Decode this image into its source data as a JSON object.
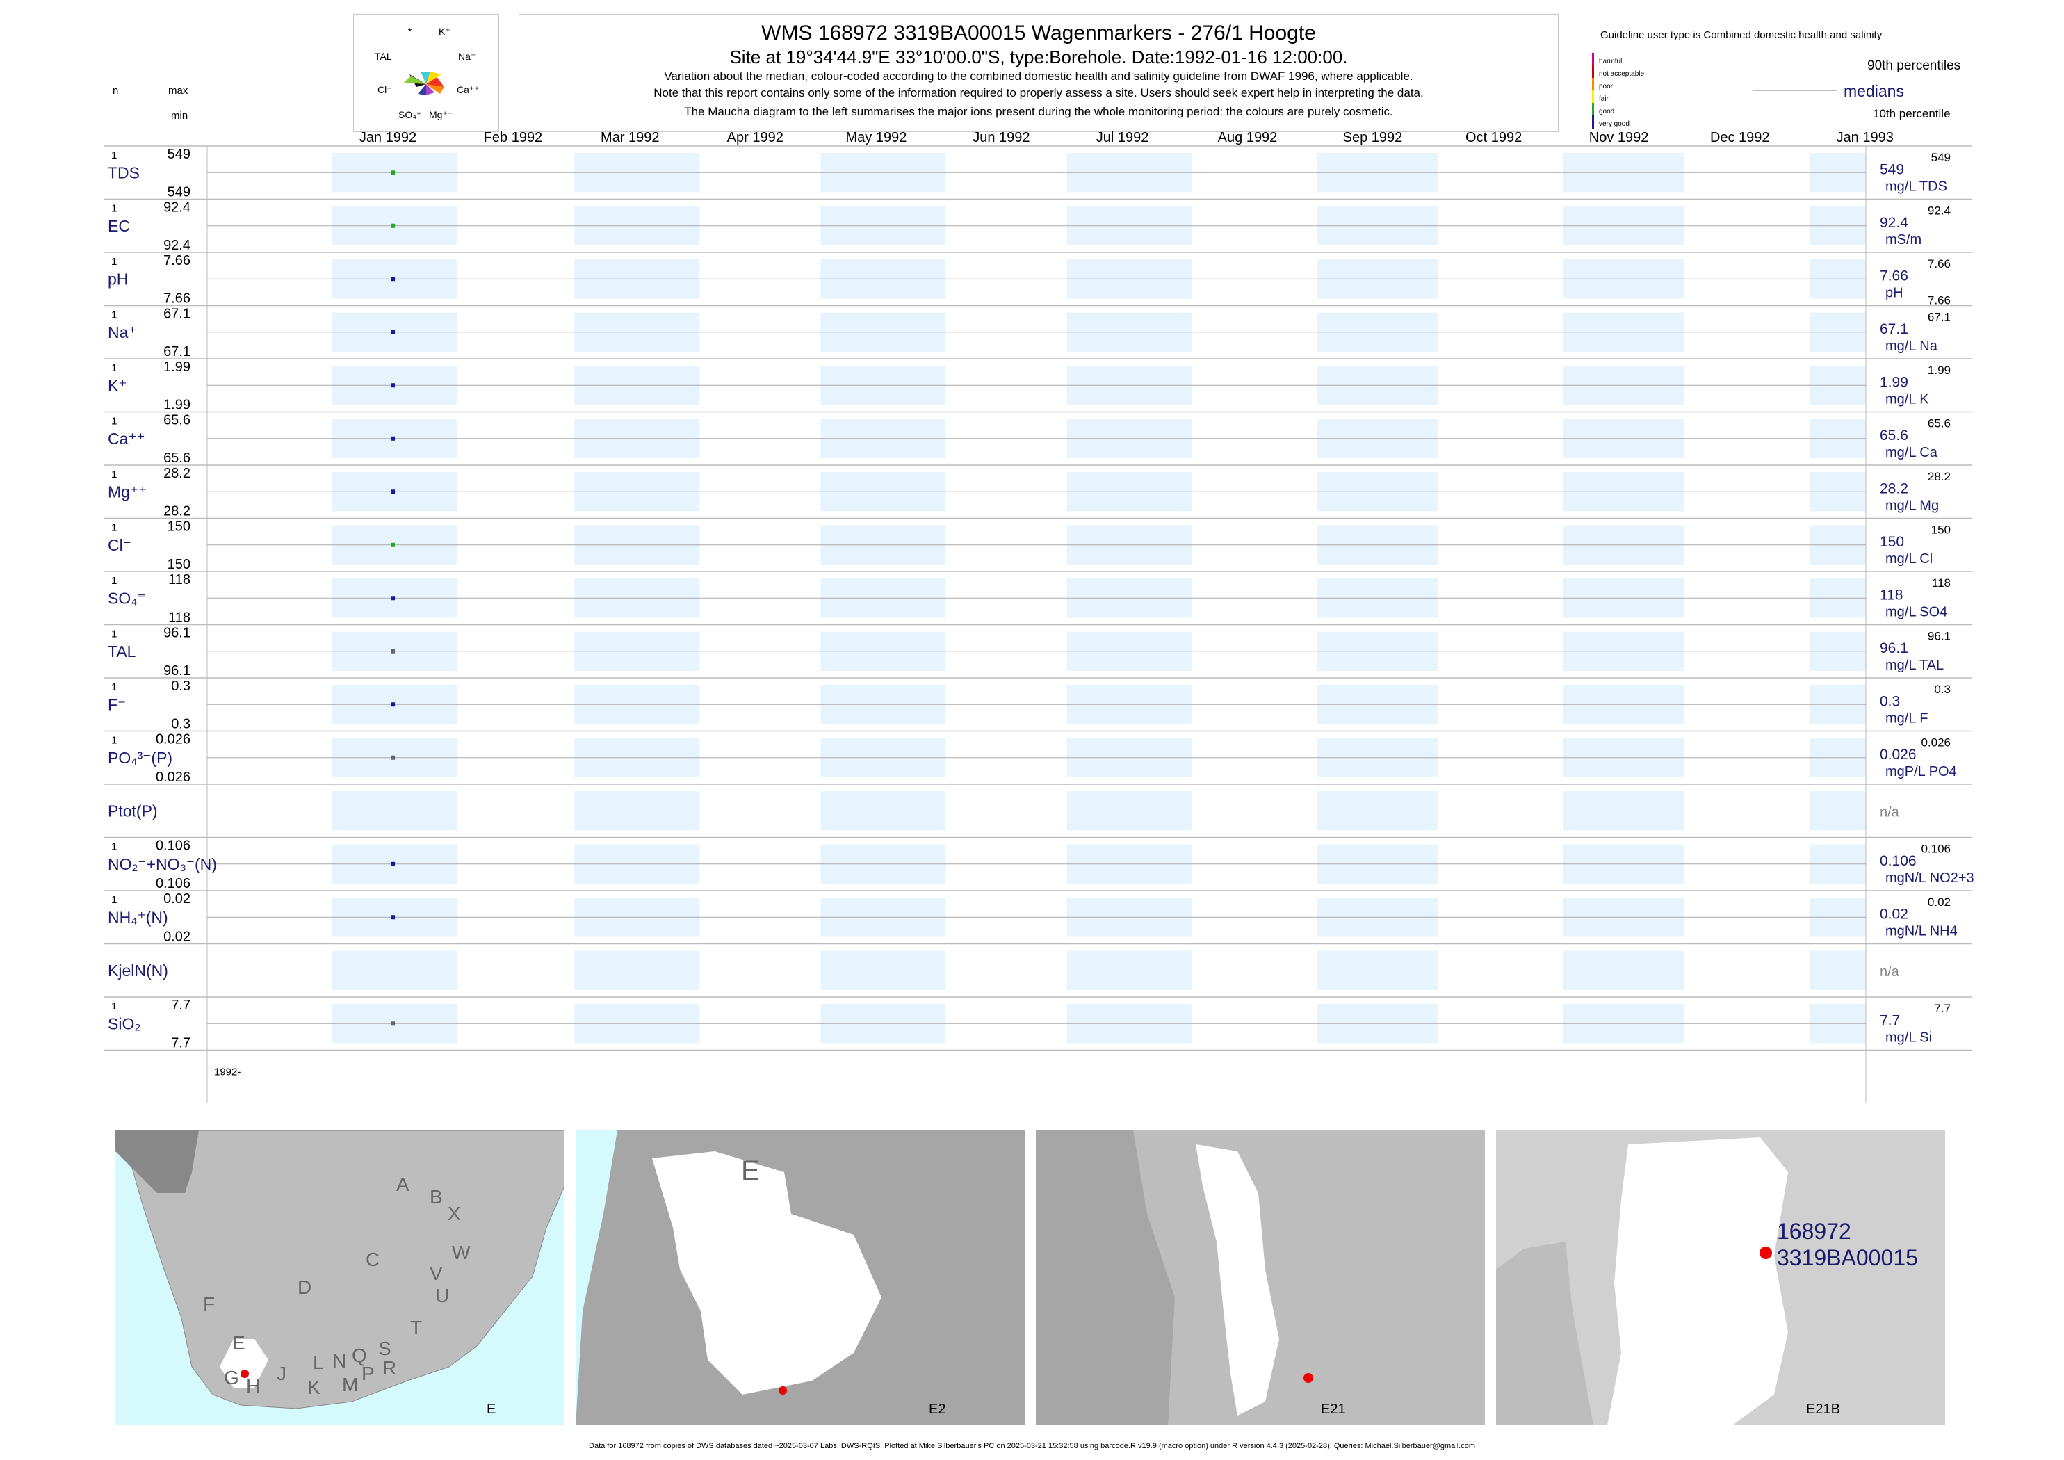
{
  "header": {
    "title": "WMS 168972 3319BA00015 Wagenmarkers - 276/1 Hoogte",
    "subtitle": "Site at 19°34'44.9\"E 33°10'00.0\"S, type:Borehole. Date:1992-01-16 12:00:00.",
    "line3": "Variation about the median,  colour-coded according to the combined domestic health and salinity guideline from DWAF 1996, where applicable.",
    "line4": "Note that this report contains only some of the information required to properly assess a site. Users should seek expert help in interpreting the data.",
    "line5": "The Maucha diagram to the left summarises the major ions present during the whole monitoring period: the colours are purely cosmetic."
  },
  "maucha": {
    "labels": [
      "*",
      "K⁺",
      "TAL",
      "Na⁺",
      "Cl⁻",
      "Ca⁺⁺",
      "SO₄⁼",
      "Mg⁺⁺"
    ],
    "colors": [
      "#ffdd00",
      "#44ccdd",
      "#2c3fa0",
      "#111111",
      "#88cc33",
      "#ee3322",
      "#ff8800",
      "#aa44cc"
    ]
  },
  "col_headers": {
    "n": "n",
    "max": "max",
    "min": "min"
  },
  "legend": {
    "guideline_text": "Guideline user type is Combined domestic health and salinity",
    "categories": [
      "harmful",
      "not acceptable",
      "poor",
      "fair",
      "good",
      "very good"
    ],
    "category_colors": [
      "#cc0099",
      "#cc0000",
      "#ff8800",
      "#ffee00",
      "#22aa22",
      "#1a1a9a"
    ],
    "p90": "90th percentiles",
    "medians": "medians",
    "p10": "10th percentile"
  },
  "months": [
    "Jan 1992",
    "Feb 1992",
    "Mar 1992",
    "Apr 1992",
    "May 1992",
    "Jun 1992",
    "Jul 1992",
    "Aug 1992",
    "Sep 1992",
    "Oct 1992",
    "Nov 1992",
    "Dec 1992",
    "Jan 1993"
  ],
  "year_label": "1992-",
  "chart_data": {
    "type": "scatter",
    "x_range": [
      "1991-12-01",
      "1993-01-15"
    ],
    "sample_date": "1992-01-16",
    "series": [
      {
        "name": "TDS",
        "n": "1",
        "max": "549",
        "min": "549",
        "median": "549",
        "p90": "549",
        "unit": "mg/L TDS",
        "color": "#22aa22"
      },
      {
        "name": "EC",
        "n": "1",
        "max": "92.4",
        "min": "92.4",
        "median": "92.4",
        "p90": "92.4",
        "unit": "mS/m",
        "color": "#22aa22"
      },
      {
        "name": "pH",
        "n": "1",
        "max": "7.66",
        "min": "7.66",
        "median": "7.66",
        "p90": "7.66",
        "p10": "7.66",
        "unit": "pH",
        "color": "#1a1a9a"
      },
      {
        "name": "Na⁺",
        "n": "1",
        "max": "67.1",
        "min": "67.1",
        "median": "67.1",
        "p90": "67.1",
        "unit": "mg/L Na",
        "color": "#1a1a9a"
      },
      {
        "name": "K⁺",
        "n": "1",
        "max": "1.99",
        "min": "1.99",
        "median": "1.99",
        "p90": "1.99",
        "unit": "mg/L K",
        "color": "#1a1a9a"
      },
      {
        "name": "Ca⁺⁺",
        "n": "1",
        "max": "65.6",
        "min": "65.6",
        "median": "65.6",
        "p90": "65.6",
        "unit": "mg/L Ca",
        "color": "#1a1a9a"
      },
      {
        "name": "Mg⁺⁺",
        "n": "1",
        "max": "28.2",
        "min": "28.2",
        "median": "28.2",
        "p90": "28.2",
        "unit": "mg/L Mg",
        "color": "#1a1a9a"
      },
      {
        "name": "Cl⁻",
        "n": "1",
        "max": "150",
        "min": "150",
        "median": "150",
        "p90": "150",
        "unit": "mg/L Cl",
        "color": "#22aa22"
      },
      {
        "name": "SO₄⁼",
        "n": "1",
        "max": "118",
        "min": "118",
        "median": "118",
        "p90": "118",
        "unit": "mg/L SO4",
        "color": "#1a1a9a"
      },
      {
        "name": "TAL",
        "n": "1",
        "max": "96.1",
        "min": "96.1",
        "median": "96.1",
        "p90": "96.1",
        "unit": "mg/L TAL",
        "color": "#666666"
      },
      {
        "name": "F⁻",
        "n": "1",
        "max": "0.3",
        "min": "0.3",
        "median": "0.3",
        "p90": "0.3",
        "unit": "mg/L F",
        "color": "#1a1a9a"
      },
      {
        "name": "PO₄³⁻(P)",
        "n": "1",
        "max": "0.026",
        "min": "0.026",
        "median": "0.026",
        "p90": "0.026",
        "unit": "mgP/L PO4",
        "color": "#666666"
      },
      {
        "name": "Ptot(P)",
        "n": "",
        "max": "",
        "min": "",
        "median": "n/a",
        "p90": "",
        "unit": "",
        "color": "#666666"
      },
      {
        "name": "NO₂⁻+NO₃⁻(N)",
        "n": "1",
        "max": "0.106",
        "min": "0.106",
        "median": "0.106",
        "p90": "0.106",
        "unit": "mgN/L NO2+3",
        "color": "#1a1a9a"
      },
      {
        "name": "NH₄⁺(N)",
        "n": "1",
        "max": "0.02",
        "min": "0.02",
        "median": "0.02",
        "p90": "0.02",
        "unit": "mgN/L NH4",
        "color": "#1a1a9a"
      },
      {
        "name": "KjelN(N)",
        "n": "",
        "max": "",
        "min": "",
        "median": "n/a",
        "p90": "",
        "unit": "",
        "color": "#666666"
      },
      {
        "name": "SiO₂",
        "n": "1",
        "max": "7.7",
        "min": "7.7",
        "median": "7.7",
        "p90": "7.7",
        "unit": "mg/L Si",
        "color": "#666666"
      }
    ]
  },
  "maps": {
    "labels": [
      "E",
      "E2",
      "E21",
      "E21B"
    ],
    "catchment_letters": [
      "A",
      "B",
      "X",
      "W",
      "C",
      "V",
      "U",
      "D",
      "T",
      "F",
      "E",
      "S",
      "Q",
      "R",
      "N",
      "P",
      "L",
      "M",
      "K",
      "J",
      "G",
      "H"
    ],
    "big_e": "E",
    "site_number": "168972",
    "site_code": "3319BA00015"
  },
  "footer": "Data for 168972 from copies of DWS databases dated ~2025-03-07 Labs: DWS-RQIS. Plotted at Mike Silberbauer's PC on 2025-03-21 15:32:58 using barcode.R v19.9 (macro option) under R version 4.4.3 (2025-02-28). Queries: Michael.Silberbauer@gmail.com"
}
